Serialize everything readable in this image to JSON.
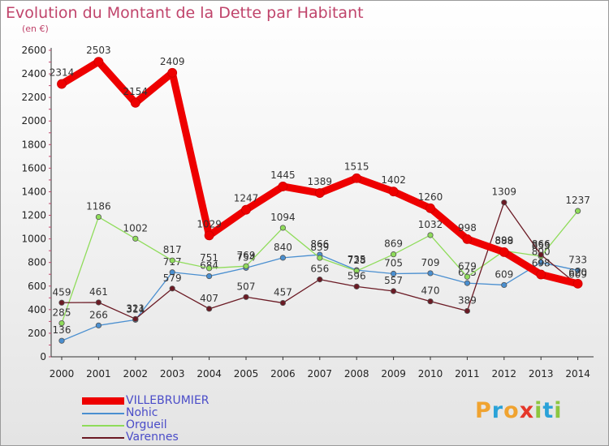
{
  "title": "Evolution du Montant de la Dette par Habitant",
  "subtitle": "(en €)",
  "logo": {
    "chars": [
      "P",
      "r",
      "o",
      "x",
      "i",
      "t",
      "i"
    ],
    "colors": [
      "#f0a330",
      "#2aa2d8",
      "#f0a330",
      "#e5372a",
      "#8cc63f",
      "#2aa2d8",
      "#8cc63f"
    ]
  },
  "chart_data": {
    "type": "line",
    "title": "Evolution du Montant de la Dette par Habitant",
    "ylabel": "(en €)",
    "x": [
      "2000",
      "2001",
      "2002",
      "2003",
      "2004",
      "2005",
      "2006",
      "2007",
      "2008",
      "2009",
      "2010",
      "2011",
      "2012",
      "2013",
      "2014"
    ],
    "ylim": [
      0,
      2600
    ],
    "yticks": [
      "0",
      "200",
      "400",
      "600",
      "800",
      "1000",
      "1200",
      "1400",
      "1600",
      "1800",
      "2000",
      "2200",
      "2400",
      "2600"
    ],
    "grid": false,
    "legend_position": "bottom-left",
    "series": [
      {
        "name": "VILLEBRUMIER",
        "color": "#ee0000",
        "values": [
          2314,
          2503,
          2154,
          2409,
          1029,
          1247,
          1445,
          1389,
          1515,
          1402,
          1260,
          998,
          888,
          698,
          620
        ],
        "labels": [
          "2314",
          "2503",
          "2154",
          "2409",
          "1029",
          "1247",
          "1445",
          "1389",
          "1515",
          "1402",
          "1260",
          "998",
          "888",
          "698",
          "620"
        ]
      },
      {
        "name": "Nohic",
        "color": "#4a8fd0",
        "values": [
          136,
          266,
          314,
          717,
          684,
          754,
          840,
          866,
          735,
          705,
          709,
          625,
          609,
          800,
          733
        ],
        "labels": [
          "136",
          "266",
          "314",
          "717",
          "684",
          "754",
          "840",
          "866",
          "735",
          "705",
          "709",
          "625",
          "609",
          "800",
          "733"
        ]
      },
      {
        "name": "Orgueil",
        "color": "#8fdc5a",
        "values": [
          285,
          1186,
          1002,
          817,
          751,
          769,
          1094,
          839,
          728,
          869,
          1032,
          679,
          899,
          853,
          1237
        ],
        "labels": [
          "285",
          "1186",
          "1002",
          "817",
          "751",
          "769",
          "1094",
          "839",
          "728",
          "869",
          "1032",
          "679",
          "899",
          "853",
          "1237"
        ]
      },
      {
        "name": "Varennes",
        "color": "#6b1a24",
        "values": [
          459,
          461,
          321,
          579,
          407,
          507,
          457,
          656,
          596,
          557,
          470,
          389,
          1309,
          866,
          609
        ],
        "labels": [
          "459",
          "461",
          "321",
          "579",
          "407",
          "507",
          "457",
          "656",
          "596",
          "557",
          "470",
          "389",
          "1309",
          "866",
          "609"
        ]
      }
    ]
  }
}
